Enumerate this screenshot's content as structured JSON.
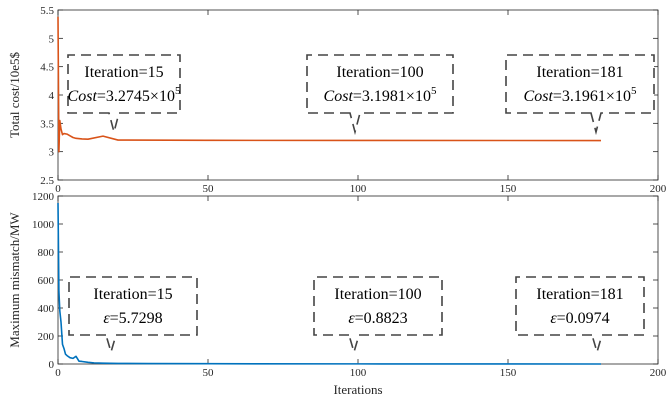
{
  "chart_data": [
    {
      "type": "line",
      "title": "",
      "xlabel": "",
      "ylabel": "Total cost/10e5$",
      "xlim": [
        0,
        200
      ],
      "ylim": [
        2.5,
        5.5
      ],
      "xticks": [
        "0",
        "50",
        "100",
        "150",
        "200"
      ],
      "yticks": [
        "2.5",
        "3",
        "3.5",
        "4",
        "4.5",
        "5",
        "5.5"
      ],
      "grid": false,
      "series": [
        {
          "color": "#d95319",
          "x": [
            0,
            0.3,
            0.6,
            1,
            1.5,
            2,
            3,
            4,
            5,
            6,
            8,
            10,
            15,
            20,
            50,
            100,
            150,
            181
          ],
          "values": [
            5.38,
            3.0,
            3.55,
            3.4,
            3.3,
            3.32,
            3.31,
            3.28,
            3.25,
            3.235,
            3.225,
            3.22,
            3.2745,
            3.205,
            3.2,
            3.1981,
            3.197,
            3.1961
          ]
        }
      ],
      "annotations": [
        {
          "line1": "Iteration=15",
          "line2_italic": "Cost",
          "line2_rest": "=3.2745×10",
          "sup": "5",
          "x": 15,
          "y": 3.2745
        },
        {
          "line1": "Iteration=100",
          "line2_italic": "Cost",
          "line2_rest": "=3.1981×10",
          "sup": "5",
          "x": 100,
          "y": 3.1981
        },
        {
          "line1": "Iteration=181",
          "line2_italic": "Cost",
          "line2_rest": "=3.1961×10",
          "sup": "5",
          "x": 181,
          "y": 3.1961
        }
      ]
    },
    {
      "type": "line",
      "title": "",
      "xlabel": "Iterations",
      "ylabel": "Maximum mismatch/MW",
      "xlim": [
        0,
        200
      ],
      "ylim": [
        0,
        1200
      ],
      "xticks": [
        "0",
        "50",
        "100",
        "150",
        "200"
      ],
      "yticks": [
        "0",
        "200",
        "400",
        "600",
        "800",
        "1000",
        "1200"
      ],
      "grid": false,
      "series": [
        {
          "color": "#0072bd",
          "x": [
            0,
            0.3,
            0.6,
            1,
            1.5,
            2,
            2.5,
            3,
            4,
            5,
            6,
            7,
            8,
            10,
            12,
            15,
            20,
            30,
            50,
            100,
            150,
            181
          ],
          "values": [
            1150,
            520,
            380,
            300,
            140,
            110,
            70,
            60,
            45,
            40,
            55,
            20,
            18,
            12,
            8,
            5.7298,
            4,
            3,
            2,
            0.8823,
            0.3,
            0.0974
          ]
        }
      ],
      "annotations": [
        {
          "line1": "Iteration=15",
          "line2_italic": "ε",
          "line2_rest": "=5.7298",
          "x": 15,
          "y": 5.7298
        },
        {
          "line1": "Iteration=100",
          "line2_italic": "ε",
          "line2_rest": "=0.8823",
          "x": 100,
          "y": 0.8823
        },
        {
          "line1": "Iteration=181",
          "line2_italic": "ε",
          "line2_rest": "=0.0974",
          "x": 181,
          "y": 0.0974
        }
      ]
    }
  ]
}
